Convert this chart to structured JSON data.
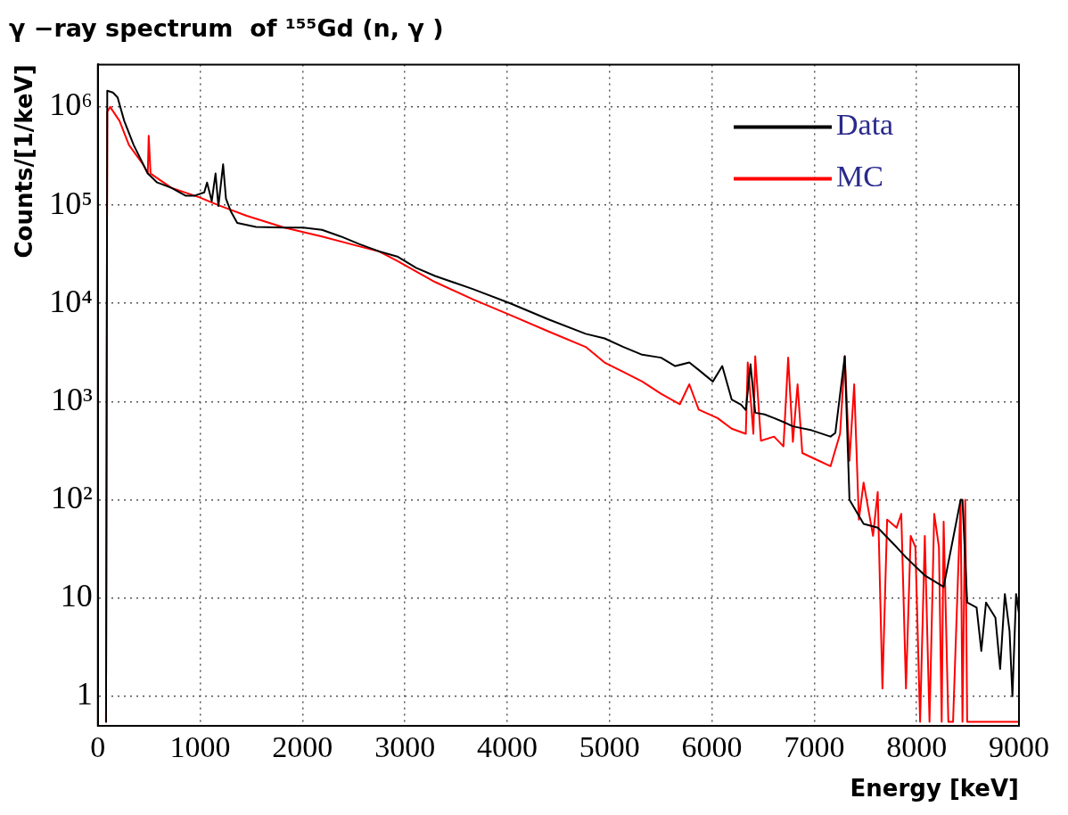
{
  "chart_data": {
    "type": "line",
    "title": "γ −ray spectrum  of ¹⁵⁵Gd (n, γ )",
    "xlabel": "Energy [keV]",
    "ylabel": "Counts/[1/keV]",
    "log": "y",
    "grid": true,
    "legend": "top right",
    "xlim": [
      0,
      9000
    ],
    "xticks": [
      0,
      1000,
      2000,
      3000,
      4000,
      5000,
      6000,
      7000,
      8000,
      9000
    ],
    "ylim": [
      0.5,
      2700000
    ],
    "yticks": [
      1,
      10,
      {
        "value": 100,
        "label": "10²"
      },
      {
        "value": 1000,
        "label": "10³"
      },
      {
        "value": 10000,
        "label": "10⁴"
      },
      {
        "value": 100000,
        "label": "10⁵"
      },
      {
        "value": 1000000,
        "label": "10⁶"
      }
    ],
    "series": [
      {
        "name": "Data",
        "color": "#000000",
        "x": [
          80,
          92,
          147,
          193,
          258,
          350,
          488,
          580,
          718,
          856,
          948,
          1040,
          1067,
          1113,
          1150,
          1178,
          1224,
          1252,
          1298,
          1362,
          1546,
          1822,
          2006,
          2190,
          2374,
          2558,
          2742,
          2926,
          3110,
          3295,
          3663,
          4031,
          4399,
          4767,
          4951,
          5135,
          5319,
          5503,
          5641,
          5779,
          5871,
          6009,
          6101,
          6193,
          6285,
          6331,
          6377,
          6423,
          6515,
          6607,
          6699,
          6791,
          6975,
          7159,
          7206,
          7298,
          7344,
          7482,
          7620,
          7804,
          7896,
          7988,
          8080,
          8264,
          8430,
          8448,
          8494,
          8586,
          8632,
          8678,
          8770,
          8816,
          8862,
          8908,
          8936,
          8972,
          9000
        ],
        "values": [
          0.55,
          1460000,
          1400000,
          1250000,
          720000,
          410000,
          210000,
          170000,
          150000,
          125000,
          125000,
          135000,
          170000,
          110000,
          210000,
          98000,
          260000,
          116000,
          87000,
          66000,
          60000,
          59000,
          59000,
          56000,
          48000,
          40000,
          34000,
          30000,
          23000,
          19000,
          14000,
          10000,
          6900,
          4900,
          4400,
          3600,
          3000,
          2800,
          2300,
          2500,
          2100,
          1600,
          2300,
          1050,
          930,
          820,
          2400,
          770,
          740,
          680,
          620,
          560,
          510,
          440,
          480,
          2900,
          100,
          57,
          52,
          33,
          26,
          21,
          17,
          13,
          100,
          100,
          9,
          8,
          2.9,
          9,
          6.3,
          1.9,
          11,
          4.6,
          1,
          11,
          7
        ]
      },
      {
        "name": "MC",
        "color": "#ff0000",
        "x": [
          80,
          92,
          120,
          212,
          304,
          442,
          488,
          497,
          515,
          718,
          994,
          1178,
          1454,
          1822,
          2190,
          2558,
          2742,
          2926,
          3295,
          3663,
          4031,
          4399,
          4767,
          4951,
          5135,
          5319,
          5503,
          5687,
          5779,
          5871,
          6055,
          6193,
          6331,
          6350,
          6405,
          6423,
          6479,
          6607,
          6699,
          6745,
          6791,
          6837,
          6883,
          6975,
          7159,
          7252,
          7298,
          7344,
          7390,
          7436,
          7482,
          7574,
          7620,
          7666,
          7712,
          7804,
          7850,
          7896,
          7942,
          7988,
          8034,
          8080,
          8126,
          8172,
          8218,
          8245,
          8264,
          8310,
          8356,
          8430,
          8448,
          8475,
          8494,
          8586,
          9000
        ],
        "values": [
          0.55,
          890000,
          1000000,
          720000,
          410000,
          260000,
          210000,
          510000,
          210000,
          150000,
          120000,
          100000,
          78000,
          59000,
          48000,
          38000,
          34000,
          27000,
          16500,
          11000,
          7600,
          5200,
          3600,
          2500,
          2000,
          1600,
          1200,
          940,
          1500,
          830,
          680,
          530,
          470,
          2500,
          470,
          2900,
          400,
          440,
          350,
          2800,
          390,
          1500,
          300,
          270,
          220,
          470,
          2900,
          250,
          1500,
          63,
          150,
          43,
          120,
          1.2,
          63,
          52,
          72,
          1.2,
          43,
          33,
          0.55,
          43,
          0.55,
          72,
          33,
          0.55,
          60,
          0.55,
          0.55,
          100,
          0.55,
          100,
          0.55,
          0.55,
          0.55
        ]
      }
    ]
  }
}
